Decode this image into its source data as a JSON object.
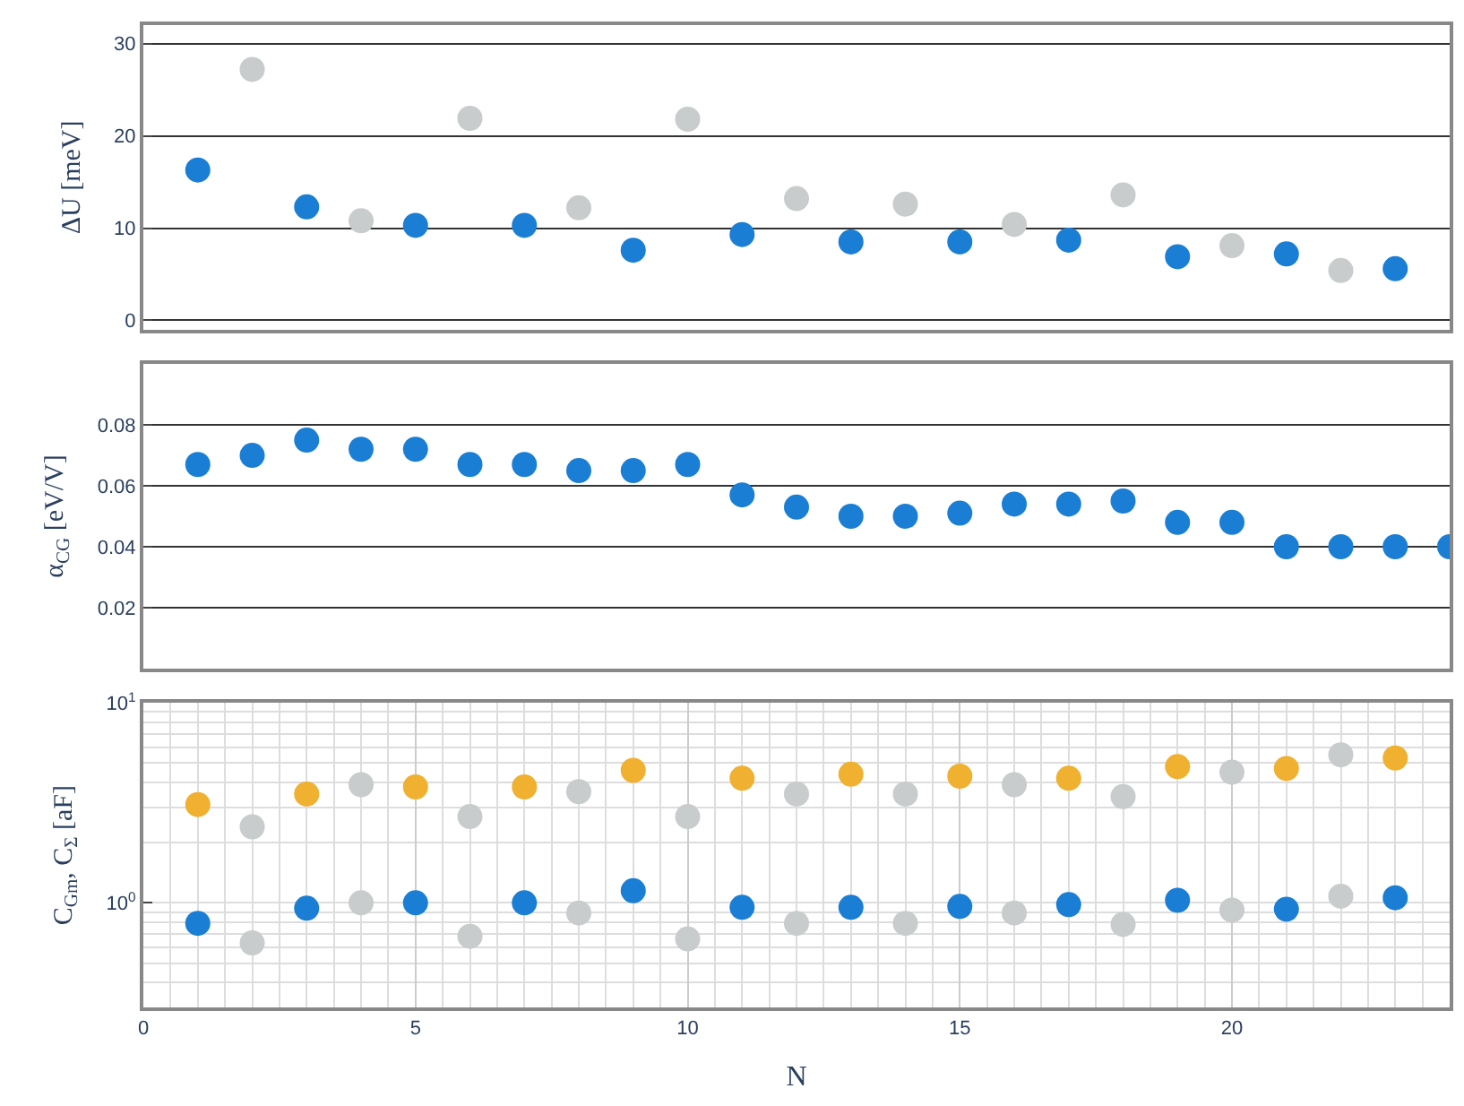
{
  "chart_data": [
    {
      "type": "scatter",
      "ylabel": "ΔU [meV]",
      "xlim": [
        0,
        24
      ],
      "ylim": [
        -1,
        32
      ],
      "yticks": [
        0,
        10,
        20,
        30
      ],
      "grid": "y",
      "marker": "circle",
      "tick_labels": "y",
      "series": [
        {
          "color": "#1a7fd4",
          "x": [
            1,
            3,
            5,
            7,
            9,
            11,
            13,
            15,
            17,
            19,
            21,
            23
          ],
          "values": [
            16.3,
            12.3,
            10.3,
            10.3,
            7.6,
            9.3,
            8.5,
            8.5,
            8.7,
            6.9,
            7.2,
            5.6
          ]
        },
        {
          "color": "#c8cccc",
          "x": [
            2,
            4,
            6,
            8,
            10,
            12,
            14,
            16,
            18,
            20,
            22
          ],
          "values": [
            27.2,
            10.8,
            21.9,
            12.2,
            21.8,
            13.2,
            12.6,
            10.4,
            13.6,
            8.1,
            5.4
          ]
        }
      ]
    },
    {
      "type": "scatter",
      "ylabel": "α$_{CG}$ [eV/V]",
      "xlim": [
        0,
        24
      ],
      "ylim": [
        0,
        0.1
      ],
      "yticks": [
        0.02,
        0.04,
        0.06,
        0.08
      ],
      "grid": "y",
      "marker": "circle",
      "tick_labels": "y",
      "series": [
        {
          "color": "#1a7fd4",
          "x": [
            1,
            2,
            3,
            4,
            5,
            6,
            7,
            8,
            9,
            10,
            11,
            12,
            13,
            14,
            15,
            16,
            17,
            18,
            19,
            20,
            21,
            22,
            23,
            24
          ],
          "values": [
            0.067,
            0.07,
            0.075,
            0.072,
            0.072,
            0.067,
            0.067,
            0.065,
            0.065,
            0.067,
            0.057,
            0.053,
            0.05,
            0.05,
            0.051,
            0.054,
            0.054,
            0.055,
            0.048,
            0.048,
            0.04,
            0.04,
            0.04,
            0.04
          ]
        }
      ]
    },
    {
      "type": "scatter",
      "xlabel": "N",
      "ylabel": "C$_{Gm}$, C$_{Σ}$ [aF]",
      "xlim": [
        0,
        24
      ],
      "xticks": [
        0,
        5,
        10,
        15,
        20
      ],
      "ylim": [
        0.3,
        10
      ],
      "yticks": [
        {
          "value": 1,
          "label": "10$^{0}$"
        },
        {
          "value": 10,
          "label": "10$^{1}$"
        }
      ],
      "log": "y",
      "grid": true,
      "marker": "circle",
      "series": [
        {
          "color": "#f0b030",
          "x": [
            1,
            3,
            5,
            7,
            9,
            11,
            13,
            15,
            17,
            19,
            21,
            23
          ],
          "values": [
            3.1,
            3.5,
            3.8,
            3.8,
            4.6,
            4.2,
            4.4,
            4.3,
            4.2,
            4.8,
            4.7,
            5.3
          ]
        },
        {
          "color": "#1a7fd4",
          "x": [
            1,
            3,
            5,
            7,
            9,
            11,
            13,
            15,
            17,
            19,
            21,
            23
          ],
          "values": [
            0.79,
            0.94,
            1.0,
            1.0,
            1.15,
            0.95,
            0.95,
            0.96,
            0.98,
            1.03,
            0.93,
            1.06
          ]
        },
        {
          "color": "#c8cccc",
          "x": [
            2,
            4,
            6,
            8,
            10,
            12,
            14,
            16,
            18,
            20,
            22
          ],
          "values": [
            2.4,
            3.9,
            2.7,
            3.6,
            2.7,
            3.5,
            3.5,
            3.9,
            3.4,
            4.5,
            5.5
          ]
        },
        {
          "color": "#c8cccc",
          "x": [
            2,
            4,
            6,
            8,
            10,
            12,
            14,
            16,
            18,
            20,
            22
          ],
          "values": [
            0.63,
            1.0,
            0.68,
            0.89,
            0.66,
            0.79,
            0.79,
            0.89,
            0.78,
            0.92,
            1.08
          ]
        }
      ]
    }
  ]
}
